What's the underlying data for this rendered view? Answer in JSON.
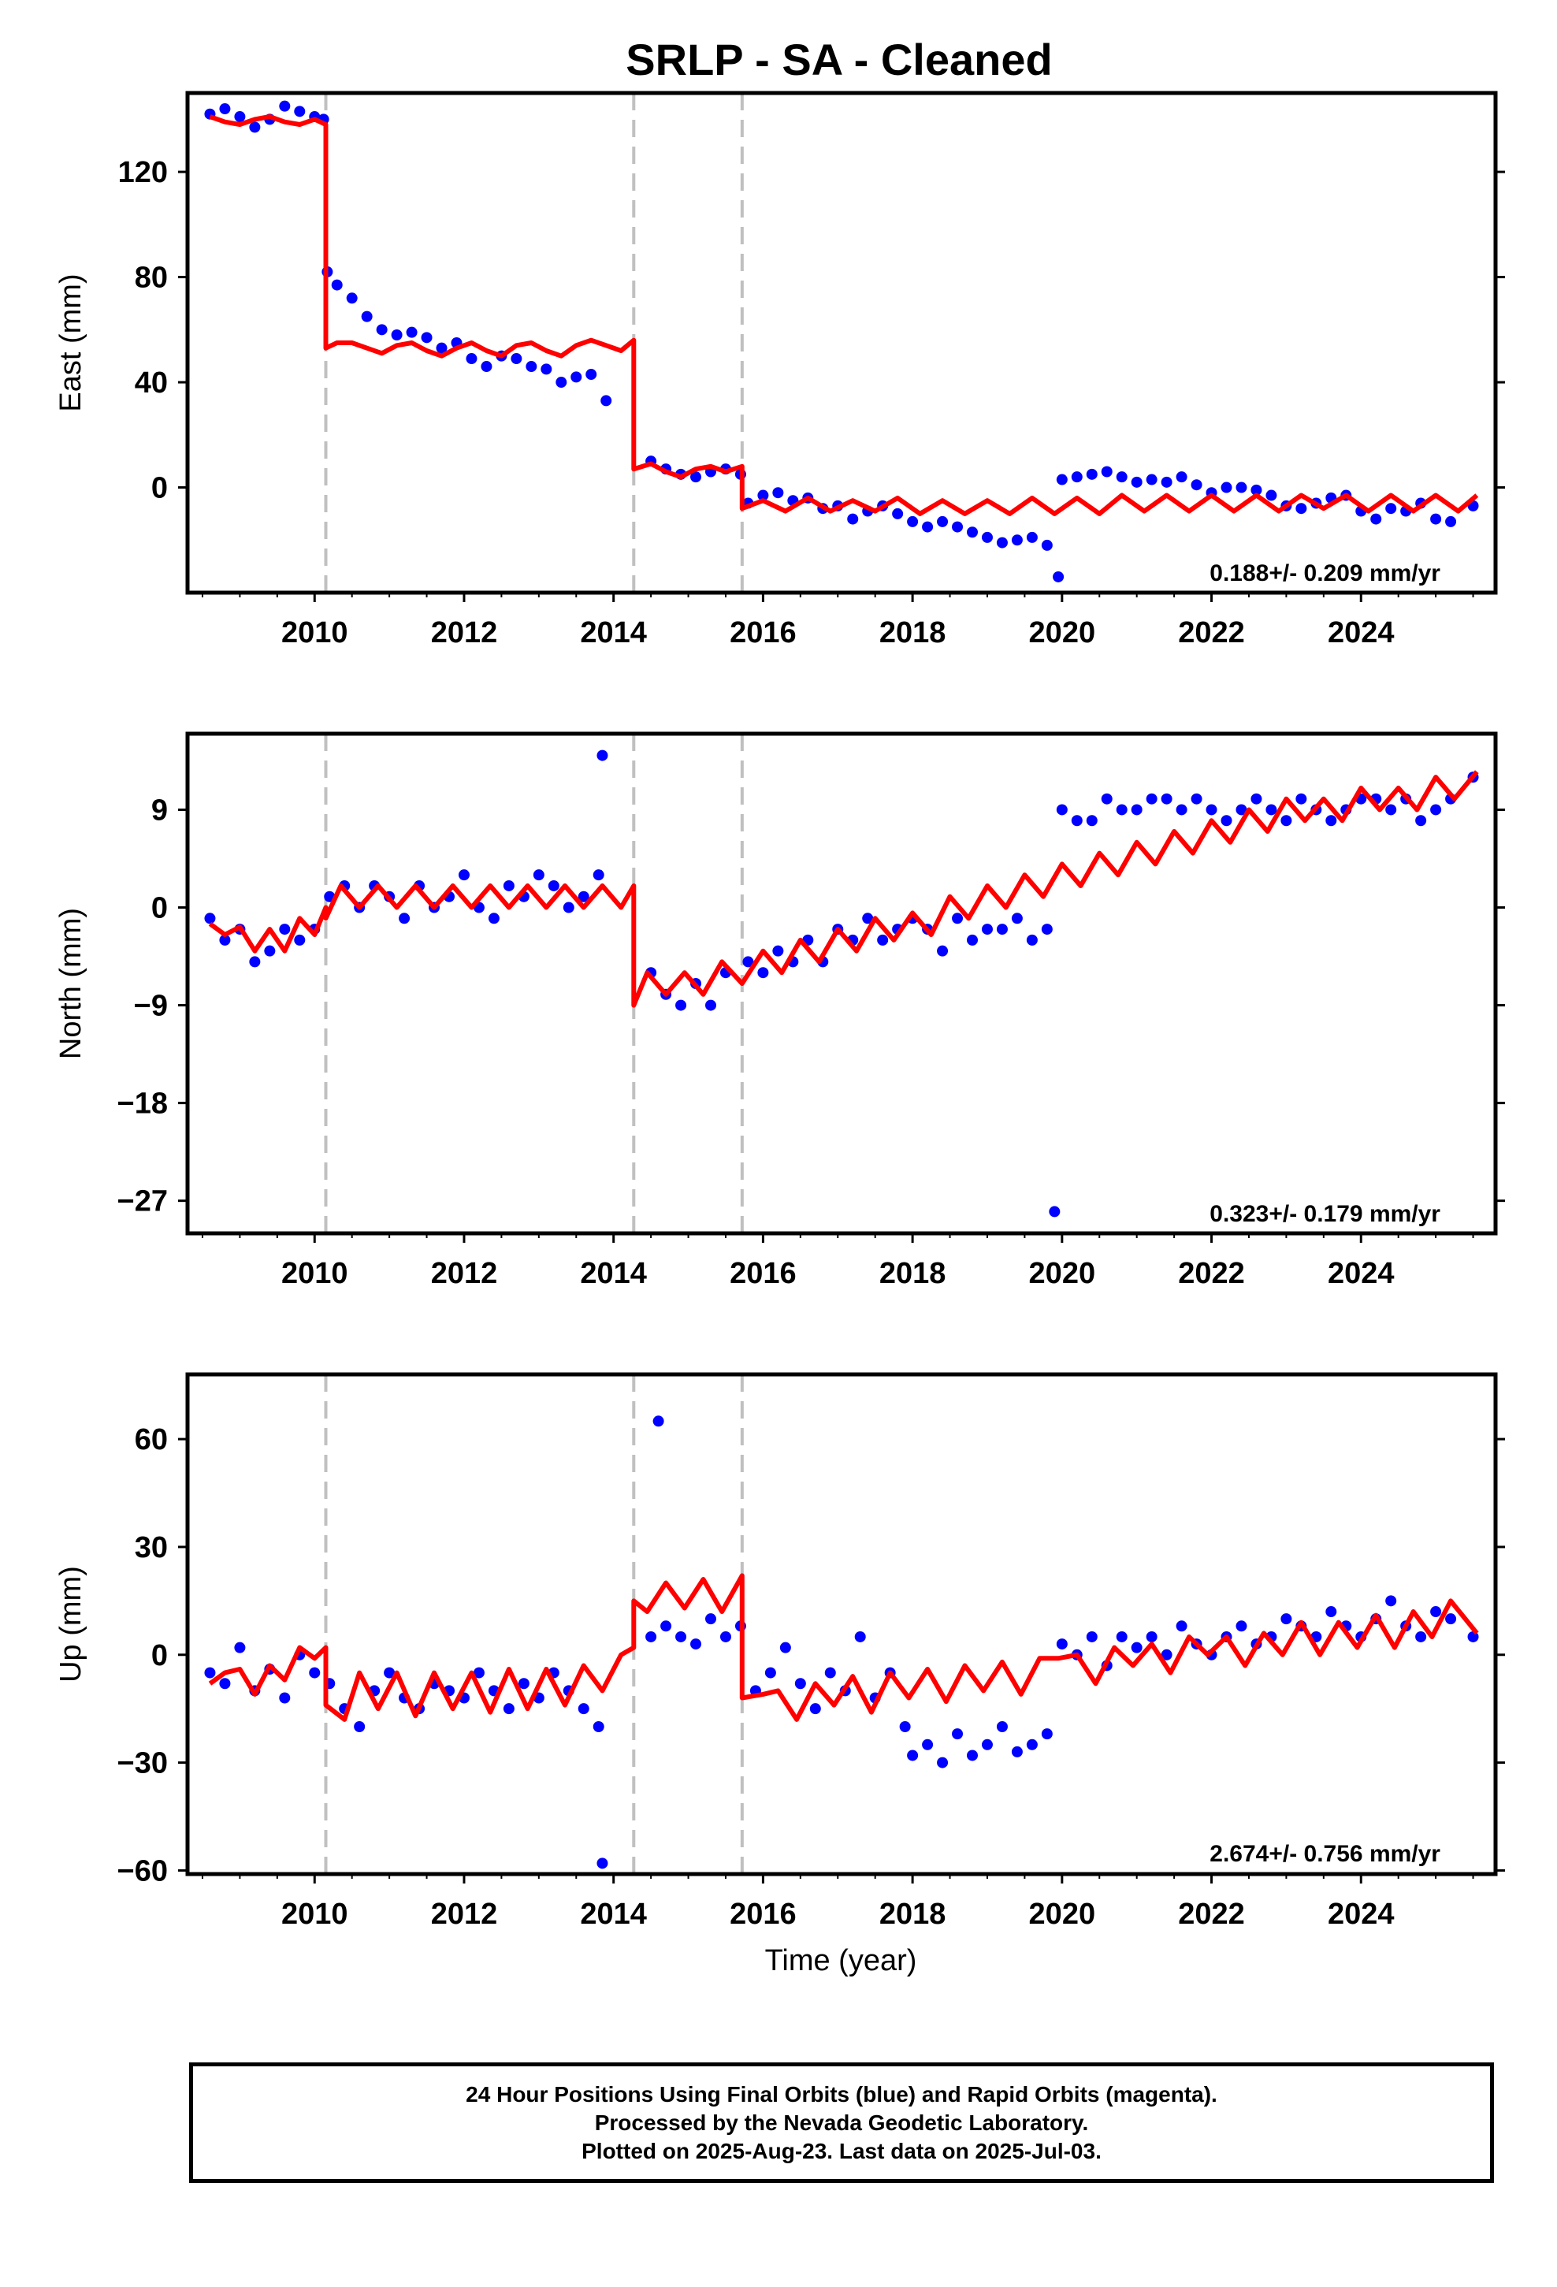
{
  "title": "SRLP  - SA - Cleaned",
  "xlabel": "Time (year)",
  "colors": {
    "points": "#0000ff",
    "model": "#ff0000",
    "steps": "#c0c0c0"
  },
  "footer": {
    "line1": "24 Hour Positions Using Final Orbits (blue) and Rapid Orbits (magenta).",
    "line2": "Processed by the Nevada Geodetic Laboratory.",
    "line3": "Plotted on 2025-Aug-23. Last data on 2025-Jul-03."
  },
  "chart_data": [
    {
      "type": "scatter",
      "component": "east",
      "ylabel": "East (mm)",
      "xlim": [
        2008.3,
        2025.8
      ],
      "ylim": [
        -40,
        150
      ],
      "xticks": [
        2010,
        2012,
        2014,
        2016,
        2018,
        2020,
        2022,
        2024
      ],
      "yticks": [
        0,
        40,
        80,
        120
      ],
      "rate_label": "0.188+/- 0.209 mm/yr",
      "step_epochs": [
        2010.15,
        2014.27,
        2015.72
      ],
      "series": [
        {
          "kind": "observed",
          "x": [
            2008.6,
            2008.8,
            2009.0,
            2009.2,
            2009.4,
            2009.6,
            2009.8,
            2010.0,
            2010.12,
            2010.17,
            2010.3,
            2010.5,
            2010.7,
            2010.9,
            2011.1,
            2011.3,
            2011.5,
            2011.7,
            2011.9,
            2012.1,
            2012.3,
            2012.5,
            2012.7,
            2012.9,
            2013.1,
            2013.3,
            2013.5,
            2013.7,
            2013.9,
            2014.5,
            2014.7,
            2014.9,
            2015.1,
            2015.3,
            2015.5,
            2015.7,
            2015.8,
            2016.0,
            2016.2,
            2016.4,
            2016.6,
            2016.8,
            2017.0,
            2017.2,
            2017.4,
            2017.6,
            2017.8,
            2018.0,
            2018.2,
            2018.4,
            2018.6,
            2018.8,
            2019.0,
            2019.2,
            2019.4,
            2019.6,
            2019.8,
            2019.95,
            2020.0,
            2020.2,
            2020.4,
            2020.6,
            2020.8,
            2021.0,
            2021.2,
            2021.4,
            2021.6,
            2021.8,
            2022.0,
            2022.2,
            2022.4,
            2022.6,
            2022.8,
            2023.0,
            2023.2,
            2023.4,
            2023.6,
            2023.8,
            2024.0,
            2024.2,
            2024.4,
            2024.6,
            2024.8,
            2025.0,
            2025.2,
            2025.5
          ],
          "y": [
            142,
            144,
            141,
            137,
            140,
            145,
            143,
            141,
            140,
            82,
            77,
            72,
            65,
            60,
            58,
            59,
            57,
            53,
            55,
            49,
            46,
            50,
            49,
            46,
            45,
            40,
            42,
            43,
            33,
            10,
            7,
            5,
            4,
            6,
            7,
            5,
            -6,
            -3,
            -2,
            -5,
            -4,
            -8,
            -7,
            -12,
            -9,
            -7,
            -10,
            -13,
            -15,
            -13,
            -15,
            -17,
            -19,
            -21,
            -20,
            -19,
            -22,
            -34,
            3,
            4,
            5,
            6,
            4,
            2,
            3,
            2,
            4,
            1,
            -2,
            0,
            0,
            -1,
            -3,
            -7,
            -8,
            -6,
            -4,
            -3,
            -9,
            -12,
            -8,
            -9,
            -6,
            -12,
            -13,
            -7
          ]
        },
        {
          "kind": "model",
          "x": [
            2008.6,
            2008.8,
            2009.0,
            2009.2,
            2009.4,
            2009.6,
            2009.8,
            2010.0,
            2010.15,
            2010.15,
            2010.3,
            2010.5,
            2010.7,
            2010.9,
            2011.1,
            2011.3,
            2011.5,
            2011.7,
            2011.9,
            2012.1,
            2012.3,
            2012.5,
            2012.7,
            2012.9,
            2013.1,
            2013.3,
            2013.5,
            2013.7,
            2013.9,
            2014.1,
            2014.27,
            2014.27,
            2014.5,
            2014.7,
            2014.9,
            2015.1,
            2015.3,
            2015.5,
            2015.72,
            2015.72,
            2016.0,
            2016.3,
            2016.6,
            2016.9,
            2017.2,
            2017.5,
            2017.8,
            2018.1,
            2018.4,
            2018.7,
            2019.0,
            2019.3,
            2019.6,
            2019.9,
            2020.2,
            2020.5,
            2020.8,
            2021.1,
            2021.4,
            2021.7,
            2022.0,
            2022.3,
            2022.6,
            2022.9,
            2023.2,
            2023.5,
            2023.8,
            2024.1,
            2024.4,
            2024.7,
            2025.0,
            2025.3,
            2025.55
          ],
          "y": [
            141,
            139,
            138,
            140,
            141,
            139,
            138,
            140,
            138,
            53,
            55,
            55,
            53,
            51,
            54,
            55,
            52,
            50,
            53,
            55,
            52,
            50,
            54,
            55,
            52,
            50,
            54,
            56,
            54,
            52,
            56,
            7,
            9,
            6,
            4,
            7,
            8,
            6,
            8,
            -8,
            -5,
            -9,
            -4,
            -9,
            -5,
            -9,
            -4,
            -10,
            -5,
            -10,
            -5,
            -10,
            -4,
            -10,
            -4,
            -10,
            -3,
            -9,
            -3,
            -9,
            -3,
            -9,
            -3,
            -9,
            -3,
            -8,
            -3,
            -9,
            -3,
            -9,
            -3,
            -9,
            -3
          ]
        }
      ]
    },
    {
      "type": "scatter",
      "component": "north",
      "ylabel": "North (mm)",
      "xlim": [
        2008.3,
        2025.8
      ],
      "ylim": [
        -30,
        16
      ],
      "xticks": [
        2010,
        2012,
        2014,
        2016,
        2018,
        2020,
        2022,
        2024
      ],
      "yticks": [
        -27,
        -18,
        -9,
        0,
        9
      ],
      "rate_label": "0.323+/- 0.179 mm/yr",
      "step_epochs": [
        2010.15,
        2014.27,
        2015.72
      ],
      "series": [
        {
          "kind": "observed",
          "x": [
            2008.6,
            2008.8,
            2009.0,
            2009.2,
            2009.4,
            2009.6,
            2009.8,
            2010.0,
            2010.2,
            2010.4,
            2010.6,
            2010.8,
            2011.0,
            2011.2,
            2011.4,
            2011.6,
            2011.8,
            2012.0,
            2012.2,
            2012.4,
            2012.6,
            2012.8,
            2013.0,
            2013.2,
            2013.4,
            2013.6,
            2013.8,
            2013.85,
            2014.5,
            2014.7,
            2014.9,
            2015.1,
            2015.3,
            2015.5,
            2015.8,
            2016.0,
            2016.2,
            2016.4,
            2016.6,
            2016.8,
            2017.0,
            2017.2,
            2017.4,
            2017.6,
            2017.8,
            2018.0,
            2018.2,
            2018.4,
            2018.6,
            2018.8,
            2019.0,
            2019.2,
            2019.4,
            2019.6,
            2019.8,
            2019.9,
            2020.0,
            2020.2,
            2020.4,
            2020.6,
            2020.8,
            2021.0,
            2021.2,
            2021.4,
            2021.6,
            2021.8,
            2022.0,
            2022.2,
            2022.4,
            2022.6,
            2022.8,
            2023.0,
            2023.2,
            2023.4,
            2023.6,
            2023.8,
            2024.0,
            2024.2,
            2024.4,
            2024.6,
            2024.8,
            2025.0,
            2025.2,
            2025.5
          ],
          "y": [
            -1,
            -3,
            -2,
            -5,
            -4,
            -2,
            -3,
            -2,
            1,
            2,
            0,
            2,
            1,
            -1,
            2,
            0,
            1,
            3,
            0,
            -1,
            2,
            1,
            3,
            2,
            0,
            1,
            3,
            14,
            -6,
            -8,
            -9,
            -7,
            -9,
            -6,
            -5,
            -6,
            -4,
            -5,
            -3,
            -5,
            -2,
            -3,
            -1,
            -3,
            -2,
            -1,
            -2,
            -4,
            -1,
            -3,
            -2,
            -2,
            -1,
            -3,
            -2,
            -28,
            9,
            8,
            8,
            10,
            9,
            9,
            10,
            10,
            9,
            10,
            9,
            8,
            9,
            10,
            9,
            8,
            10,
            9,
            8,
            9,
            10,
            10,
            9,
            10,
            8,
            9,
            10,
            12
          ]
        },
        {
          "kind": "model",
          "x": [
            2008.6,
            2008.8,
            2009.0,
            2009.2,
            2009.4,
            2009.6,
            2009.8,
            2010.0,
            2010.15,
            2010.15,
            2010.35,
            2010.6,
            2010.85,
            2011.1,
            2011.35,
            2011.6,
            2011.85,
            2012.1,
            2012.35,
            2012.6,
            2012.85,
            2013.1,
            2013.35,
            2013.6,
            2013.85,
            2014.1,
            2014.27,
            2014.27,
            2014.45,
            2014.7,
            2014.95,
            2015.2,
            2015.45,
            2015.72,
            2015.72,
            2016.0,
            2016.25,
            2016.5,
            2016.75,
            2017.0,
            2017.25,
            2017.5,
            2017.75,
            2018.0,
            2018.25,
            2018.5,
            2018.75,
            2019.0,
            2019.25,
            2019.5,
            2019.75,
            2020.0,
            2020.25,
            2020.5,
            2020.75,
            2021.0,
            2021.25,
            2021.5,
            2021.75,
            2022.0,
            2022.25,
            2022.5,
            2022.75,
            2023.0,
            2023.25,
            2023.5,
            2023.75,
            2024.0,
            2024.25,
            2024.5,
            2024.75,
            2025.0,
            2025.25,
            2025.55
          ],
          "y": [
            -1.5,
            -2.5,
            -1.8,
            -4,
            -2,
            -4,
            -1,
            -2.5,
            0,
            -1,
            2,
            0,
            2,
            0,
            2,
            0,
            2,
            0,
            2,
            0,
            2,
            0,
            2,
            0,
            2,
            0,
            2,
            -9,
            -6,
            -8,
            -6,
            -8,
            -5,
            -7,
            -7,
            -4,
            -6,
            -3,
            -5,
            -2,
            -4,
            -1,
            -3,
            -0.5,
            -2.5,
            1,
            -1,
            2,
            0,
            3,
            1,
            4,
            2,
            5,
            3,
            6,
            4,
            7,
            5,
            8,
            6,
            9,
            7,
            10,
            8,
            10,
            8,
            11,
            9,
            11,
            9,
            12,
            10,
            12.5
          ]
        }
      ]
    },
    {
      "type": "scatter",
      "component": "up",
      "ylabel": "Up (mm)",
      "xlim": [
        2008.3,
        2025.8
      ],
      "ylim": [
        -61,
        78
      ],
      "xticks": [
        2010,
        2012,
        2014,
        2016,
        2018,
        2020,
        2022,
        2024
      ],
      "yticks": [
        -60,
        -30,
        0,
        30,
        60
      ],
      "rate_label": "2.674+/- 0.756 mm/yr",
      "step_epochs": [
        2010.15,
        2014.27,
        2015.72
      ],
      "series": [
        {
          "kind": "observed",
          "x": [
            2008.6,
            2008.8,
            2009.0,
            2009.2,
            2009.4,
            2009.6,
            2009.8,
            2010.0,
            2010.2,
            2010.4,
            2010.6,
            2010.8,
            2011.0,
            2011.2,
            2011.4,
            2011.6,
            2011.8,
            2012.0,
            2012.2,
            2012.4,
            2012.6,
            2012.8,
            2013.0,
            2013.2,
            2013.4,
            2013.6,
            2013.8,
            2013.85,
            2014.5,
            2014.6,
            2014.7,
            2014.9,
            2015.1,
            2015.3,
            2015.5,
            2015.7,
            2015.9,
            2016.1,
            2016.3,
            2016.5,
            2016.7,
            2016.9,
            2017.1,
            2017.3,
            2017.5,
            2017.7,
            2017.9,
            2018.0,
            2018.2,
            2018.4,
            2018.6,
            2018.8,
            2019.0,
            2019.2,
            2019.4,
            2019.6,
            2019.8,
            2020.0,
            2020.2,
            2020.4,
            2020.6,
            2020.8,
            2021.0,
            2021.2,
            2021.4,
            2021.6,
            2021.8,
            2022.0,
            2022.2,
            2022.4,
            2022.6,
            2022.8,
            2023.0,
            2023.2,
            2023.4,
            2023.6,
            2023.8,
            2024.0,
            2024.2,
            2024.4,
            2024.6,
            2024.8,
            2025.0,
            2025.2,
            2025.5
          ],
          "y": [
            -5,
            -8,
            2,
            -10,
            -4,
            -12,
            0,
            -5,
            -8,
            -15,
            -20,
            -10,
            -5,
            -12,
            -15,
            -8,
            -10,
            -12,
            -5,
            -10,
            -15,
            -8,
            -12,
            -5,
            -10,
            -15,
            -20,
            -58,
            5,
            65,
            8,
            5,
            3,
            10,
            5,
            8,
            -10,
            -5,
            2,
            -8,
            -15,
            -5,
            -10,
            5,
            -12,
            -5,
            -20,
            -28,
            -25,
            -30,
            -22,
            -28,
            -25,
            -20,
            -27,
            -25,
            -22,
            3,
            0,
            5,
            -3,
            5,
            2,
            5,
            0,
            8,
            3,
            0,
            5,
            8,
            3,
            5,
            10,
            8,
            5,
            12,
            8,
            5,
            10,
            15,
            8,
            5,
            12,
            10,
            5
          ]
        },
        {
          "kind": "model",
          "x": [
            2008.6,
            2008.8,
            2009.0,
            2009.2,
            2009.4,
            2009.6,
            2009.8,
            2010.0,
            2010.15,
            2010.15,
            2010.4,
            2010.6,
            2010.85,
            2011.1,
            2011.35,
            2011.6,
            2011.85,
            2012.1,
            2012.35,
            2012.6,
            2012.85,
            2013.1,
            2013.35,
            2013.6,
            2013.85,
            2014.1,
            2014.27,
            2014.27,
            2014.45,
            2014.7,
            2014.95,
            2015.2,
            2015.45,
            2015.72,
            2015.72,
            2016.0,
            2016.2,
            2016.45,
            2016.7,
            2016.95,
            2017.2,
            2017.45,
            2017.7,
            2017.95,
            2018.2,
            2018.45,
            2018.7,
            2018.95,
            2019.2,
            2019.45,
            2019.7,
            2019.95,
            2020.2,
            2020.45,
            2020.7,
            2020.95,
            2021.2,
            2021.45,
            2021.7,
            2021.95,
            2022.2,
            2022.45,
            2022.7,
            2022.95,
            2023.2,
            2023.45,
            2023.7,
            2023.95,
            2024.2,
            2024.45,
            2024.7,
            2024.95,
            2025.2,
            2025.55
          ],
          "y": [
            -8,
            -5,
            -4,
            -11,
            -3,
            -7,
            2,
            -1,
            2,
            -14,
            -18,
            -5,
            -15,
            -5,
            -17,
            -5,
            -15,
            -5,
            -16,
            -4,
            -15,
            -4,
            -14,
            -3,
            -10,
            0,
            2,
            15,
            12,
            20,
            13,
            21,
            12,
            22,
            -12,
            -11,
            -10,
            -18,
            -8,
            -14,
            -6,
            -16,
            -5,
            -12,
            -4,
            -13,
            -3,
            -10,
            -2,
            -11,
            -1,
            -1,
            0,
            -8,
            2,
            -3,
            3,
            -5,
            5,
            0,
            5,
            -3,
            6,
            0,
            9,
            0,
            9,
            2,
            11,
            2,
            12,
            5,
            15,
            6
          ]
        }
      ]
    }
  ]
}
